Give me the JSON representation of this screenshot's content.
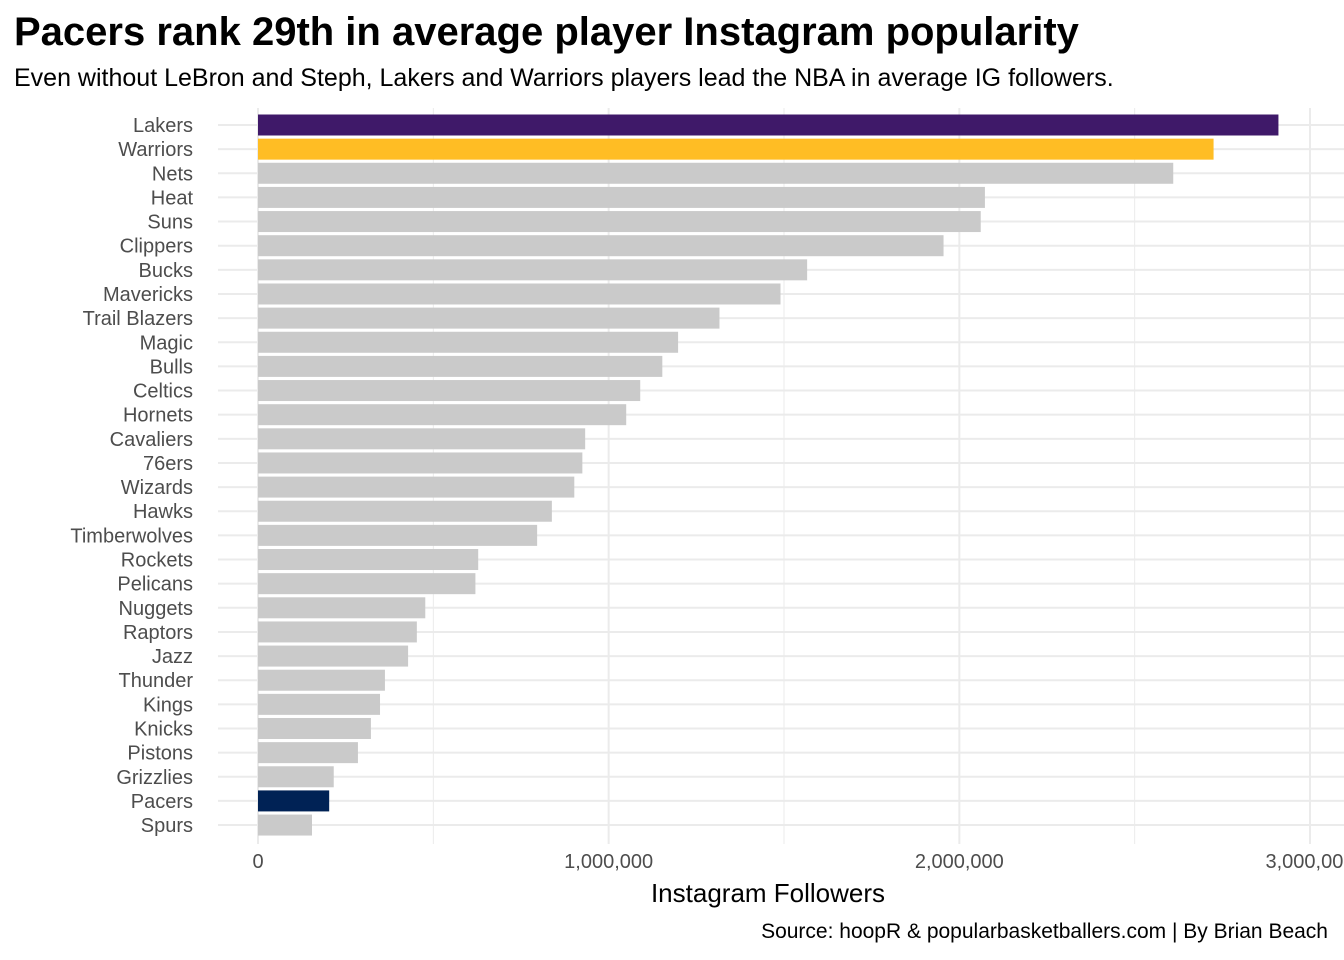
{
  "title": "Pacers rank 29th in average player Instagram popularity",
  "subtitle": "Even without LeBron and Steph, Lakers and Warriors players lead the NBA in average IG followers.",
  "caption": "Source: hoopR & popularbasketballers.com | By Brian Beach",
  "chart_data": {
    "type": "bar",
    "orientation": "horizontal",
    "title": "Pacers rank 29th in average player Instagram popularity",
    "xlabel": "Instagram Followers",
    "ylabel": "",
    "xlim": [
      0,
      3000000
    ],
    "xticks": [
      0,
      1000000,
      2000000,
      3000000
    ],
    "xtick_labels": [
      "0",
      "1,000,000",
      "2,000,000",
      "3,000,000"
    ],
    "grid": true,
    "categories": [
      "Lakers",
      "Warriors",
      "Nets",
      "Heat",
      "Suns",
      "Clippers",
      "Bucks",
      "Mavericks",
      "Trail Blazers",
      "Magic",
      "Bulls",
      "Celtics",
      "Hornets",
      "Cavaliers",
      "76ers",
      "Wizards",
      "Hawks",
      "Timberwolves",
      "Rockets",
      "Pelicans",
      "Nuggets",
      "Raptors",
      "Jazz",
      "Thunder",
      "Kings",
      "Knicks",
      "Pistons",
      "Grizzlies",
      "Pacers",
      "Spurs"
    ],
    "values": [
      2910000,
      2725000,
      2610000,
      2073000,
      2061000,
      1955000,
      1566000,
      1490000,
      1316000,
      1198000,
      1153000,
      1090000,
      1050000,
      933000,
      925000,
      902000,
      838000,
      796000,
      628000,
      620000,
      477000,
      453000,
      428000,
      362000,
      348000,
      322000,
      285000,
      216000,
      203000,
      154000
    ],
    "colors": {
      "default": "#cacaca",
      "Lakers": "#3f1969",
      "Warriors": "#ffbd24",
      "Pacers": "#002255"
    }
  }
}
